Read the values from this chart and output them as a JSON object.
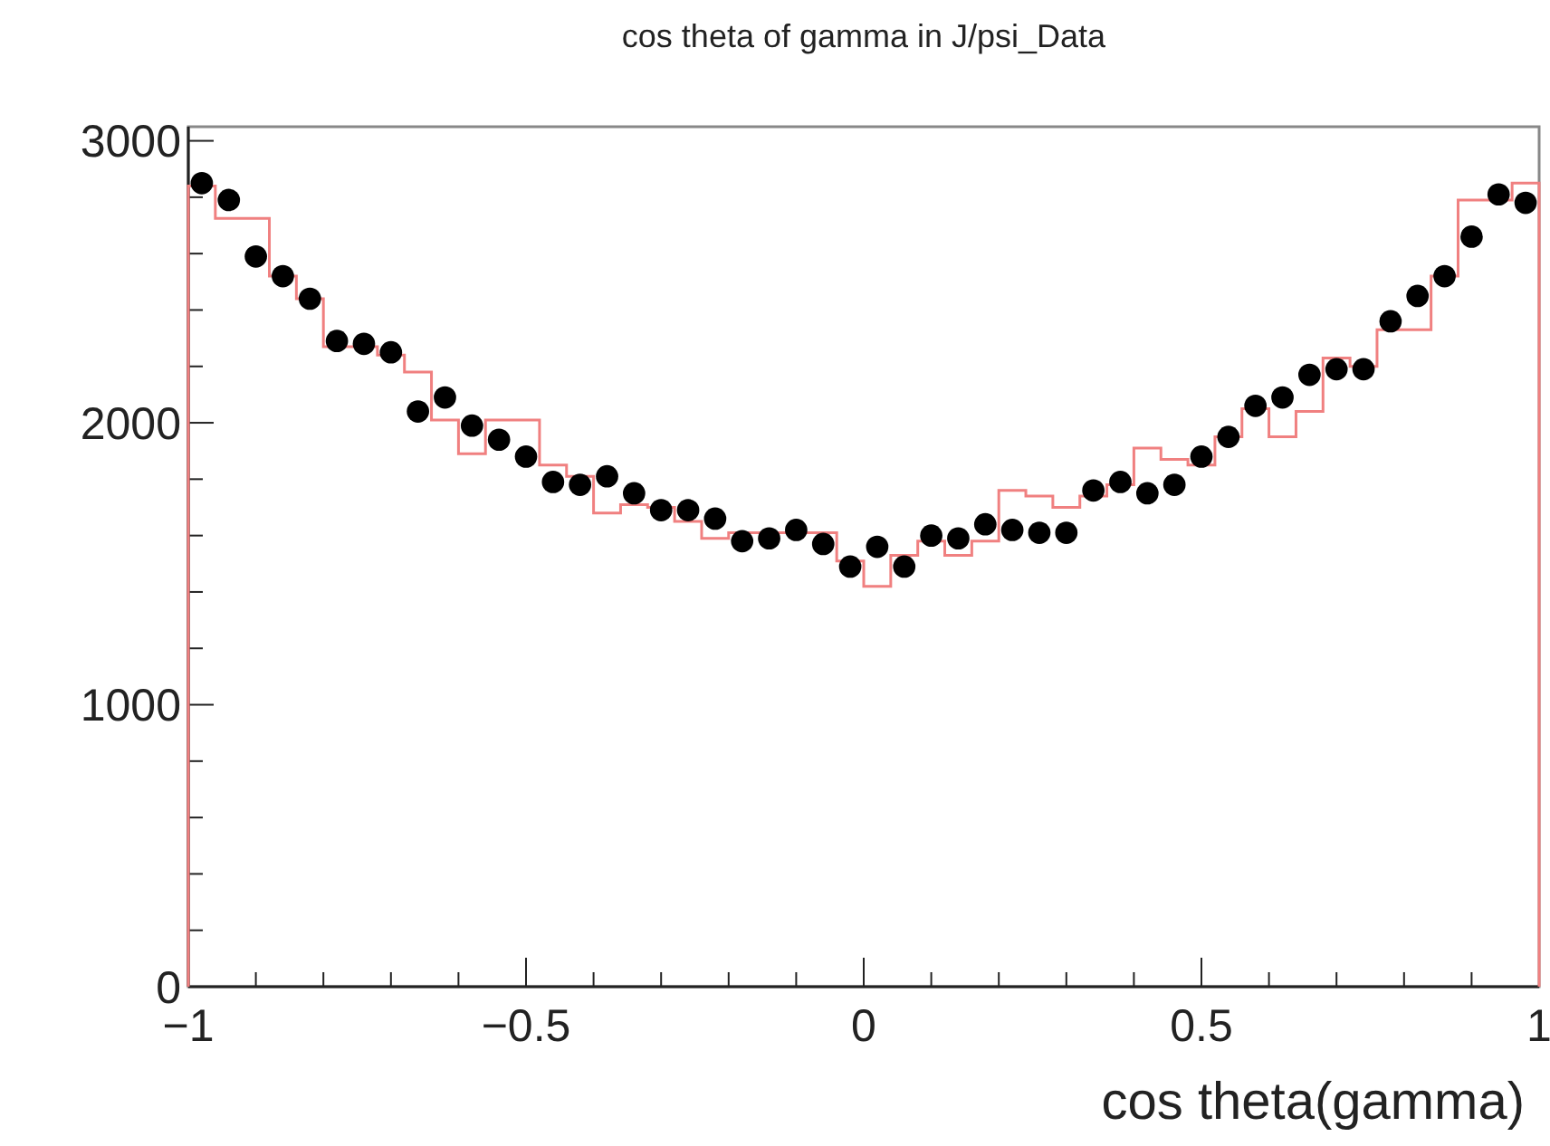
{
  "chart_data": {
    "type": "histogram",
    "title": "cos theta of gamma in J/psi_Data",
    "xlabel": "cos theta(gamma)",
    "bins": [
      -1,
      -0.96,
      -0.92,
      -0.88,
      -0.84,
      -0.8,
      -0.76,
      -0.72,
      -0.68,
      -0.64,
      -0.6,
      -0.56,
      -0.52,
      -0.48,
      -0.44,
      -0.4,
      -0.36,
      -0.32,
      -0.28,
      -0.24,
      -0.2,
      -0.16,
      -0.12,
      -0.08,
      -0.04,
      0,
      0.04,
      0.08,
      0.12,
      0.16,
      0.2,
      0.24,
      0.28,
      0.32,
      0.36,
      0.4,
      0.44,
      0.48,
      0.52,
      0.56,
      0.6,
      0.64,
      0.68,
      0.72,
      0.76,
      0.8,
      0.84,
      0.88,
      0.92,
      0.96,
      1
    ],
    "series": [
      {
        "color": "#f08080",
        "values": [
          2840,
          2725,
          2725,
          2520,
          2440,
          2270,
          2270,
          2240,
          2180,
          2010,
          1890,
          2010,
          2010,
          1850,
          1810,
          1680,
          1710,
          1700,
          1650,
          1590,
          1610,
          1610,
          1610,
          1610,
          1510,
          1420,
          1530,
          1580,
          1530,
          1580,
          1760,
          1740,
          1700,
          1740,
          1780,
          1910,
          1870,
          1850,
          1950,
          2050,
          1950,
          2040,
          2230,
          2200,
          2330,
          2330,
          2520,
          2790,
          2790,
          2850
        ]
      },
      {
        "type": "scatter",
        "color": "#000000",
        "marker": "circle",
        "x": [
          -0.98,
          -0.94,
          -0.9,
          -0.86,
          -0.82,
          -0.78,
          -0.74,
          -0.7,
          -0.66,
          -0.62,
          -0.58,
          -0.54,
          -0.5,
          -0.46,
          -0.42,
          -0.38,
          -0.34,
          -0.3,
          -0.26,
          -0.22,
          -0.18,
          -0.14,
          -0.1,
          -0.06,
          -0.02,
          0.02,
          0.06,
          0.1,
          0.14,
          0.18,
          0.22,
          0.26,
          0.3,
          0.34,
          0.38,
          0.42,
          0.46,
          0.5,
          0.54,
          0.58,
          0.62,
          0.66,
          0.7,
          0.74,
          0.78,
          0.82,
          0.86,
          0.9,
          0.94,
          0.98
        ],
        "values": [
          2850,
          2790,
          2590,
          2520,
          2440,
          2290,
          2280,
          2250,
          2040,
          2090,
          1990,
          1940,
          1880,
          1790,
          1780,
          1810,
          1750,
          1690,
          1690,
          1660,
          1580,
          1590,
          1620,
          1570,
          1490,
          1560,
          1490,
          1600,
          1590,
          1640,
          1620,
          1610,
          1610,
          1760,
          1790,
          1750,
          1780,
          1880,
          1950,
          2060,
          2090,
          2170,
          2190,
          2190,
          2360,
          2450,
          2520,
          2660,
          2810,
          2780
        ]
      }
    ],
    "xlim": [
      -1,
      1
    ],
    "xticks": [
      {
        "value": -1,
        "label": "−1"
      },
      {
        "value": -0.9,
        "label": null
      },
      {
        "value": -0.8,
        "label": null
      },
      {
        "value": -0.7,
        "label": null
      },
      {
        "value": -0.6,
        "label": null
      },
      {
        "value": -0.5,
        "label": "−0.5"
      },
      {
        "value": -0.4,
        "label": null
      },
      {
        "value": -0.3,
        "label": null
      },
      {
        "value": -0.2,
        "label": null
      },
      {
        "value": -0.1,
        "label": null
      },
      0,
      {
        "value": 0.1,
        "label": null
      },
      {
        "value": 0.2,
        "label": null
      },
      {
        "value": 0.3,
        "label": null
      },
      {
        "value": 0.4,
        "label": null
      },
      0.5,
      {
        "value": 0.6,
        "label": null
      },
      {
        "value": 0.7,
        "label": null
      },
      {
        "value": 0.8,
        "label": null
      },
      {
        "value": 0.9,
        "label": null
      },
      1
    ],
    "ylim": [
      0,
      3050
    ],
    "yticks": [
      0,
      {
        "value": 200,
        "label": null
      },
      {
        "value": 400,
        "label": null
      },
      {
        "value": 600,
        "label": null
      },
      {
        "value": 800,
        "label": null
      },
      1000,
      {
        "value": 1200,
        "label": null
      },
      {
        "value": 1400,
        "label": null
      },
      {
        "value": 1600,
        "label": null
      },
      {
        "value": 1800,
        "label": null
      },
      2000,
      {
        "value": 2200,
        "label": null
      },
      {
        "value": 2400,
        "label": null
      },
      {
        "value": 2600,
        "label": null
      },
      {
        "value": 2800,
        "label": null
      },
      3000
    ],
    "grid": false
  }
}
